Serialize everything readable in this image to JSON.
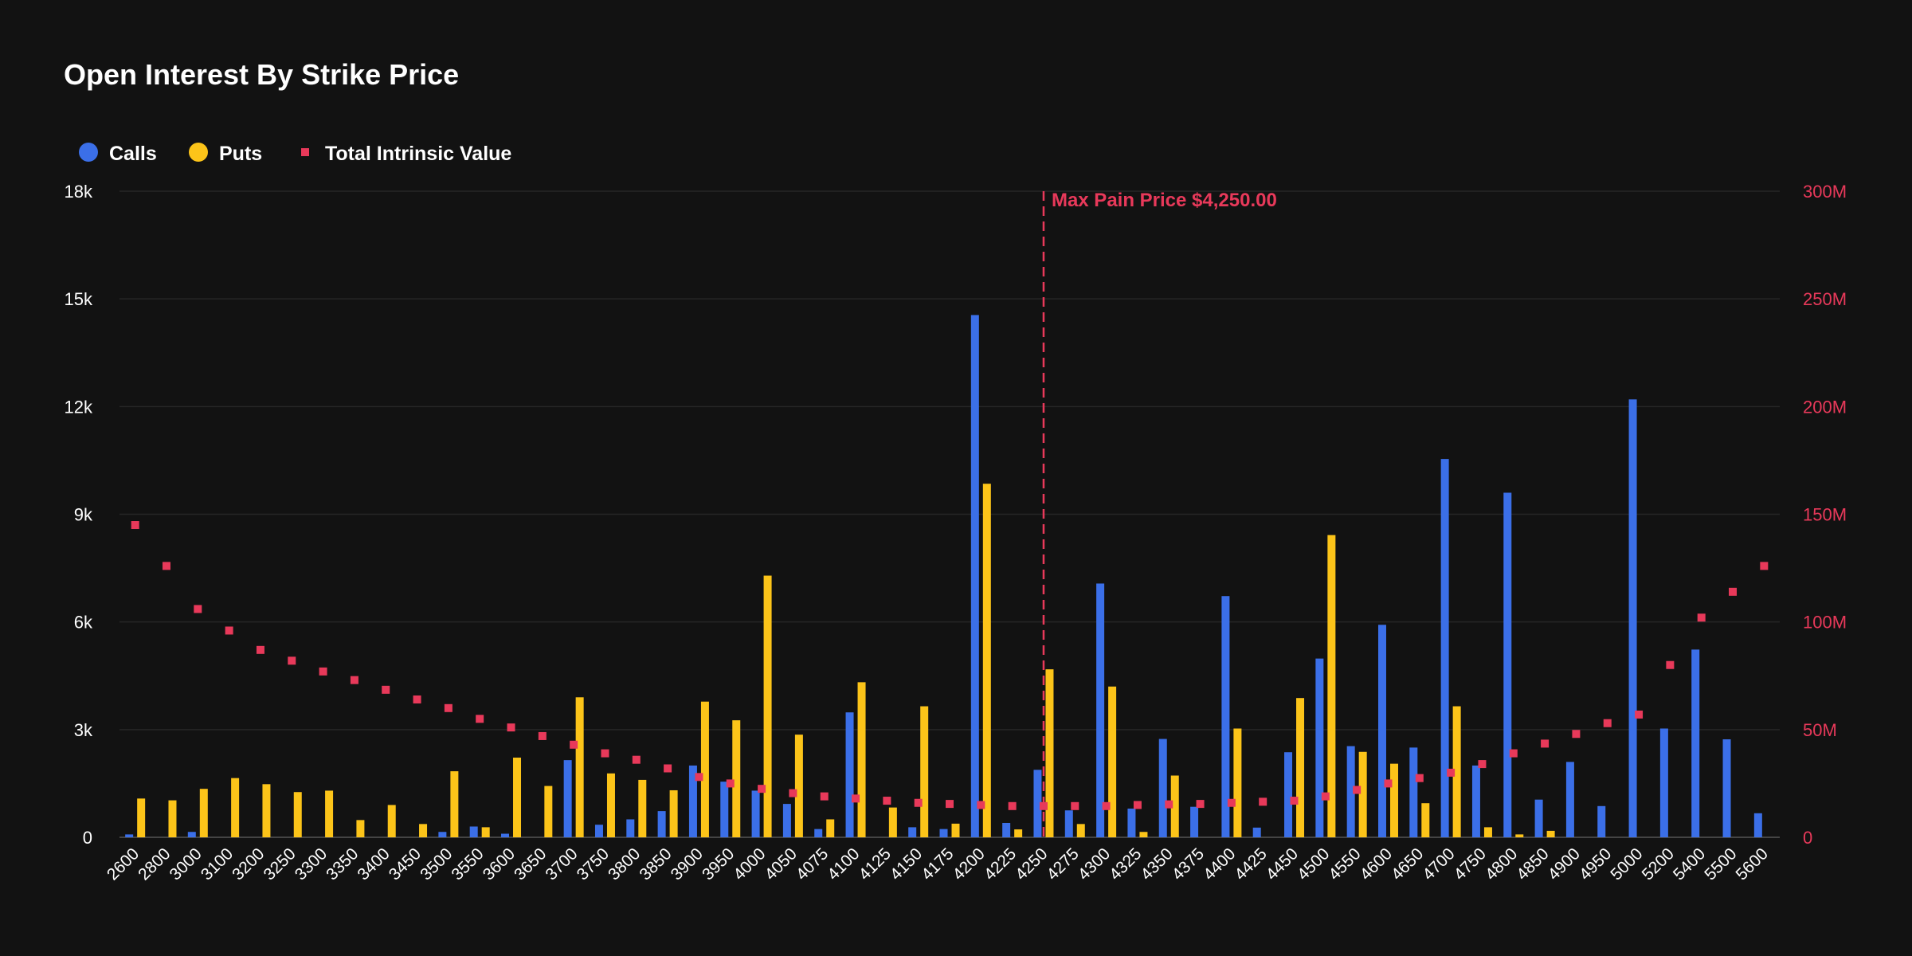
{
  "colors": {
    "background": "#121212",
    "calls": "#3b6fe8",
    "puts": "#fcc419",
    "intrinsic": "#e8395a",
    "grid": "#262626",
    "text": "#ffffff",
    "right_axis": "#e8395a"
  },
  "chart_data": {
    "type": "bar",
    "title": "Open Interest By Strike Price",
    "legend": [
      {
        "name": "Calls",
        "marker": "circle"
      },
      {
        "name": "Puts",
        "marker": "circle"
      },
      {
        "name": "Total Intrinsic Value",
        "marker": "square"
      }
    ],
    "legend_position": "top-left",
    "grid": true,
    "categories": [
      "2600",
      "2800",
      "3000",
      "3100",
      "3200",
      "3250",
      "3300",
      "3350",
      "3400",
      "3450",
      "3500",
      "3550",
      "3600",
      "3650",
      "3700",
      "3750",
      "3800",
      "3850",
      "3900",
      "3950",
      "4000",
      "4050",
      "4075",
      "4100",
      "4125",
      "4150",
      "4175",
      "4200",
      "4225",
      "4250",
      "4275",
      "4300",
      "4325",
      "4350",
      "4375",
      "4400",
      "4425",
      "4450",
      "4500",
      "4550",
      "4600",
      "4650",
      "4700",
      "4750",
      "4800",
      "4850",
      "4900",
      "4950",
      "5000",
      "5200",
      "5400",
      "5500",
      "5600"
    ],
    "series": [
      {
        "name": "Calls",
        "type": "bar",
        "axis": "left",
        "values": [
          80,
          0,
          150,
          0,
          0,
          0,
          0,
          0,
          0,
          0,
          150,
          300,
          100,
          0,
          2150,
          350,
          500,
          730,
          2000,
          1550,
          1300,
          930,
          230,
          3480,
          0,
          280,
          230,
          14550,
          400,
          1880,
          750,
          7070,
          800,
          2740,
          850,
          6720,
          270,
          2370,
          4980,
          2540,
          5920,
          2500,
          10540,
          2000,
          9600,
          1050,
          2100,
          870,
          12200,
          3030,
          5230,
          2730,
          670
        ]
      },
      {
        "name": "Puts",
        "type": "bar",
        "axis": "left",
        "values": [
          1080,
          1030,
          1350,
          1650,
          1480,
          1260,
          1300,
          480,
          900,
          370,
          1840,
          280,
          2220,
          1430,
          3900,
          1780,
          1600,
          1310,
          3780,
          3260,
          7290,
          2860,
          500,
          4320,
          830,
          3650,
          380,
          9850,
          220,
          4680,
          370,
          4200,
          150,
          1720,
          0,
          3030,
          0,
          3880,
          8420,
          2380,
          2050,
          950,
          3650,
          280,
          80,
          180,
          0,
          0,
          0,
          0,
          0,
          0,
          0
        ]
      },
      {
        "name": "Total Intrinsic Value",
        "type": "scatter",
        "axis": "right",
        "values": [
          145,
          126,
          106,
          96,
          87,
          82,
          77,
          73,
          68.5,
          64,
          60,
          55,
          51,
          47,
          43,
          39,
          36,
          32,
          28,
          25,
          22.5,
          20.5,
          19,
          18,
          17,
          16,
          15.5,
          15,
          14.5,
          14.5,
          14.5,
          14.5,
          15,
          15.3,
          15.5,
          16,
          16.5,
          17,
          19,
          22,
          25,
          27.5,
          30,
          34,
          39,
          43.5,
          48,
          53,
          57,
          80,
          102,
          114,
          126
        ]
      }
    ],
    "ylabel": "",
    "xlabel": "",
    "ylim": [
      0,
      18000
    ],
    "yticks": [
      "0",
      "3k",
      "6k",
      "9k",
      "12k",
      "15k",
      "18k"
    ],
    "y2lim": [
      0,
      300
    ],
    "y2ticks": [
      "0",
      "50M",
      "100M",
      "150M",
      "200M",
      "250M",
      "300M"
    ],
    "annotation": {
      "category": "4250",
      "label": "Max Pain Price $4,250.00"
    }
  }
}
